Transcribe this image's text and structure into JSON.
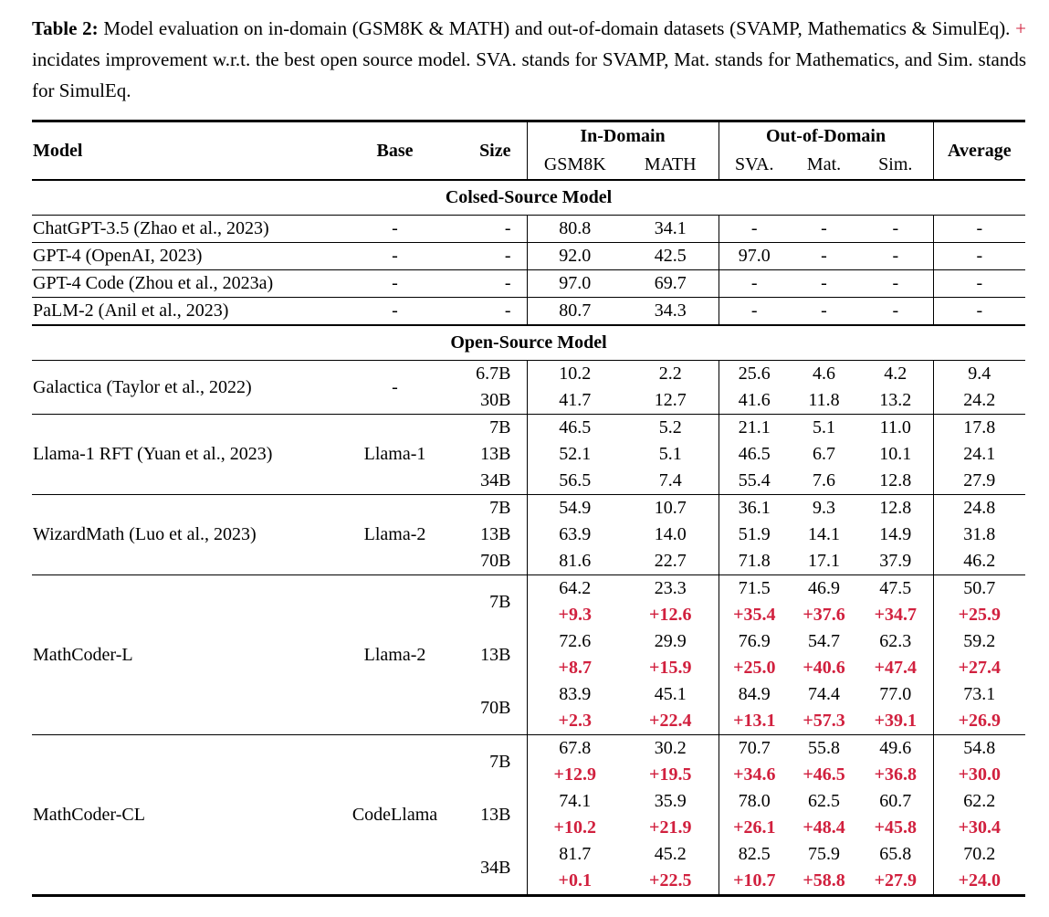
{
  "colors": {
    "delta_red": "#d1203e"
  },
  "caption": {
    "label": "Table 2:",
    "before_plus": " Model evaluation on in-domain (GSM8K & MATH) and out-of-domain datasets (SVAMP, Mathematics & SimulEq). ",
    "plus": "+",
    "after_plus": " incidates improvement w.r.t. the best open source model. SVA. stands for SVAMP, Mat. stands for Mathematics, and Sim. stands for SimulEq."
  },
  "header": {
    "model": "Model",
    "base": "Base",
    "size": "Size",
    "in_domain": "In-Domain",
    "out_of_domain": "Out-of-Domain",
    "average": "Average",
    "sub": [
      "GSM8K",
      "MATH",
      "SVA.",
      "Mat.",
      "Sim."
    ]
  },
  "table": {
    "sections": [
      {
        "title": "Colsed-Source Model",
        "groups": [
          {
            "model": "ChatGPT-3.5 (Zhao et al., 2023)",
            "base": "-",
            "rows": [
              {
                "size": "-",
                "vals": [
                  "80.8",
                  "34.1",
                  "-",
                  "-",
                  "-",
                  "-"
                ]
              }
            ]
          },
          {
            "model": "GPT-4 (OpenAI, 2023)",
            "base": "-",
            "rows": [
              {
                "size": "-",
                "vals": [
                  "92.0",
                  "42.5",
                  "97.0",
                  "-",
                  "-",
                  "-"
                ]
              }
            ]
          },
          {
            "model": "GPT-4 Code (Zhou et al., 2023a)",
            "base": "-",
            "rows": [
              {
                "size": "-",
                "vals": [
                  "97.0",
                  "69.7",
                  "-",
                  "-",
                  "-",
                  "-"
                ]
              }
            ]
          },
          {
            "model": "PaLM-2 (Anil et al., 2023)",
            "base": "-",
            "rows": [
              {
                "size": "-",
                "vals": [
                  "80.7",
                  "34.3",
                  "-",
                  "-",
                  "-",
                  "-"
                ]
              }
            ]
          }
        ]
      },
      {
        "title": "Open-Source Model",
        "groups": [
          {
            "model": "Galactica (Taylor et al., 2022)",
            "base": "-",
            "rows": [
              {
                "size": "6.7B",
                "vals": [
                  "10.2",
                  "2.2",
                  "25.6",
                  "4.6",
                  "4.2",
                  "9.4"
                ]
              },
              {
                "size": "30B",
                "vals": [
                  "41.7",
                  "12.7",
                  "41.6",
                  "11.8",
                  "13.2",
                  "24.2"
                ]
              }
            ]
          },
          {
            "model": "Llama-1 RFT (Yuan et al., 2023)",
            "base": "Llama-1",
            "rows": [
              {
                "size": "7B",
                "vals": [
                  "46.5",
                  "5.2",
                  "21.1",
                  "5.1",
                  "11.0",
                  "17.8"
                ]
              },
              {
                "size": "13B",
                "vals": [
                  "52.1",
                  "5.1",
                  "46.5",
                  "6.7",
                  "10.1",
                  "24.1"
                ]
              },
              {
                "size": "34B",
                "vals": [
                  "56.5",
                  "7.4",
                  "55.4",
                  "7.6",
                  "12.8",
                  "27.9"
                ]
              }
            ]
          },
          {
            "model": "WizardMath (Luo et al., 2023)",
            "base": "Llama-2",
            "rows": [
              {
                "size": "7B",
                "vals": [
                  "54.9",
                  "10.7",
                  "36.1",
                  "9.3",
                  "12.8",
                  "24.8"
                ]
              },
              {
                "size": "13B",
                "vals": [
                  "63.9",
                  "14.0",
                  "51.9",
                  "14.1",
                  "14.9",
                  "31.8"
                ]
              },
              {
                "size": "70B",
                "vals": [
                  "81.6",
                  "22.7",
                  "71.8",
                  "17.1",
                  "37.9",
                  "46.2"
                ]
              }
            ]
          },
          {
            "model": "MathCoder-L",
            "base": "Llama-2",
            "rows": [
              {
                "size": "7B",
                "vals": [
                  "64.2",
                  "23.3",
                  "71.5",
                  "46.9",
                  "47.5",
                  "50.7"
                ],
                "delta": [
                  "+9.3",
                  "+12.6",
                  "+35.4",
                  "+37.6",
                  "+34.7",
                  "+25.9"
                ]
              },
              {
                "size": "13B",
                "vals": [
                  "72.6",
                  "29.9",
                  "76.9",
                  "54.7",
                  "62.3",
                  "59.2"
                ],
                "delta": [
                  "+8.7",
                  "+15.9",
                  "+25.0",
                  "+40.6",
                  "+47.4",
                  "+27.4"
                ]
              },
              {
                "size": "70B",
                "vals": [
                  "83.9",
                  "45.1",
                  "84.9",
                  "74.4",
                  "77.0",
                  "73.1"
                ],
                "delta": [
                  "+2.3",
                  "+22.4",
                  "+13.1",
                  "+57.3",
                  "+39.1",
                  "+26.9"
                ]
              }
            ]
          },
          {
            "model": "MathCoder-CL",
            "base": "CodeLlama",
            "rows": [
              {
                "size": "7B",
                "vals": [
                  "67.8",
                  "30.2",
                  "70.7",
                  "55.8",
                  "49.6",
                  "54.8"
                ],
                "delta": [
                  "+12.9",
                  "+19.5",
                  "+34.6",
                  "+46.5",
                  "+36.8",
                  "+30.0"
                ]
              },
              {
                "size": "13B",
                "vals": [
                  "74.1",
                  "35.9",
                  "78.0",
                  "62.5",
                  "60.7",
                  "62.2"
                ],
                "delta": [
                  "+10.2",
                  "+21.9",
                  "+26.1",
                  "+48.4",
                  "+45.8",
                  "+30.4"
                ]
              },
              {
                "size": "34B",
                "vals": [
                  "81.7",
                  "45.2",
                  "82.5",
                  "75.9",
                  "65.8",
                  "70.2"
                ],
                "delta": [
                  "+0.1",
                  "+22.5",
                  "+10.7",
                  "+58.8",
                  "+27.9",
                  "+24.0"
                ]
              }
            ]
          }
        ]
      }
    ]
  }
}
